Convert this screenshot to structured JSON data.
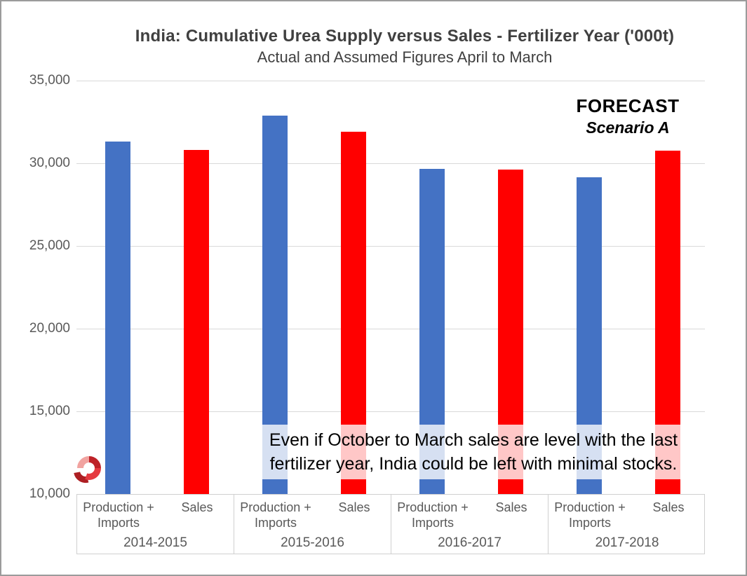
{
  "title": "India: Cumulative Urea Supply versus Sales - Fertilizer Year ('000t)",
  "subtitle": "Actual and Assumed Figures April to March",
  "forecast": {
    "label": "FORECAST",
    "scenario": "Scenario A"
  },
  "annotation": {
    "text": "Even if October to March sales are level with the last fertilizer year, India could be left with minimal stocks."
  },
  "colors": {
    "production_imports": "#4472C4",
    "sales": "#FF0000",
    "gridline": "#D9D9D9",
    "axis_text": "#595959",
    "title_text": "#404040",
    "logo_pink": "#F1A3A0",
    "logo_dark_red": "#BE2228",
    "logo_red": "#E53A40",
    "logo_tail_red": "#AD1F23"
  },
  "chart_data": {
    "type": "bar",
    "title": "India: Cumulative Urea Supply versus Sales - Fertilizer Year ('000t)",
    "subtitle": "Actual and Assumed Figures April to March",
    "categories": [
      "2014-2015",
      "2015-2016",
      "2016-2017",
      "2017-2018"
    ],
    "series": [
      {
        "name": "Production + Imports",
        "label_lines": [
          "Production +",
          "Imports"
        ],
        "color": "#4472C4",
        "values": [
          31300,
          32900,
          29650,
          29150
        ]
      },
      {
        "name": "Sales",
        "label_lines": [
          "Sales"
        ],
        "color": "#FF0000",
        "values": [
          30800,
          31900,
          29600,
          30750
        ]
      }
    ],
    "ylim": [
      10000,
      35000
    ],
    "ytick_step": 5000,
    "ytick_labels": [
      "35,000",
      "30,000",
      "25,000",
      "20,000",
      "15,000",
      "10,000"
    ],
    "grid": true,
    "legend_position": "category-axis-labels",
    "annotations": [
      "FORECAST",
      "Scenario A",
      "Even if October to March sales are level with the last fertilizer year, India could be left with minimal stocks."
    ]
  }
}
